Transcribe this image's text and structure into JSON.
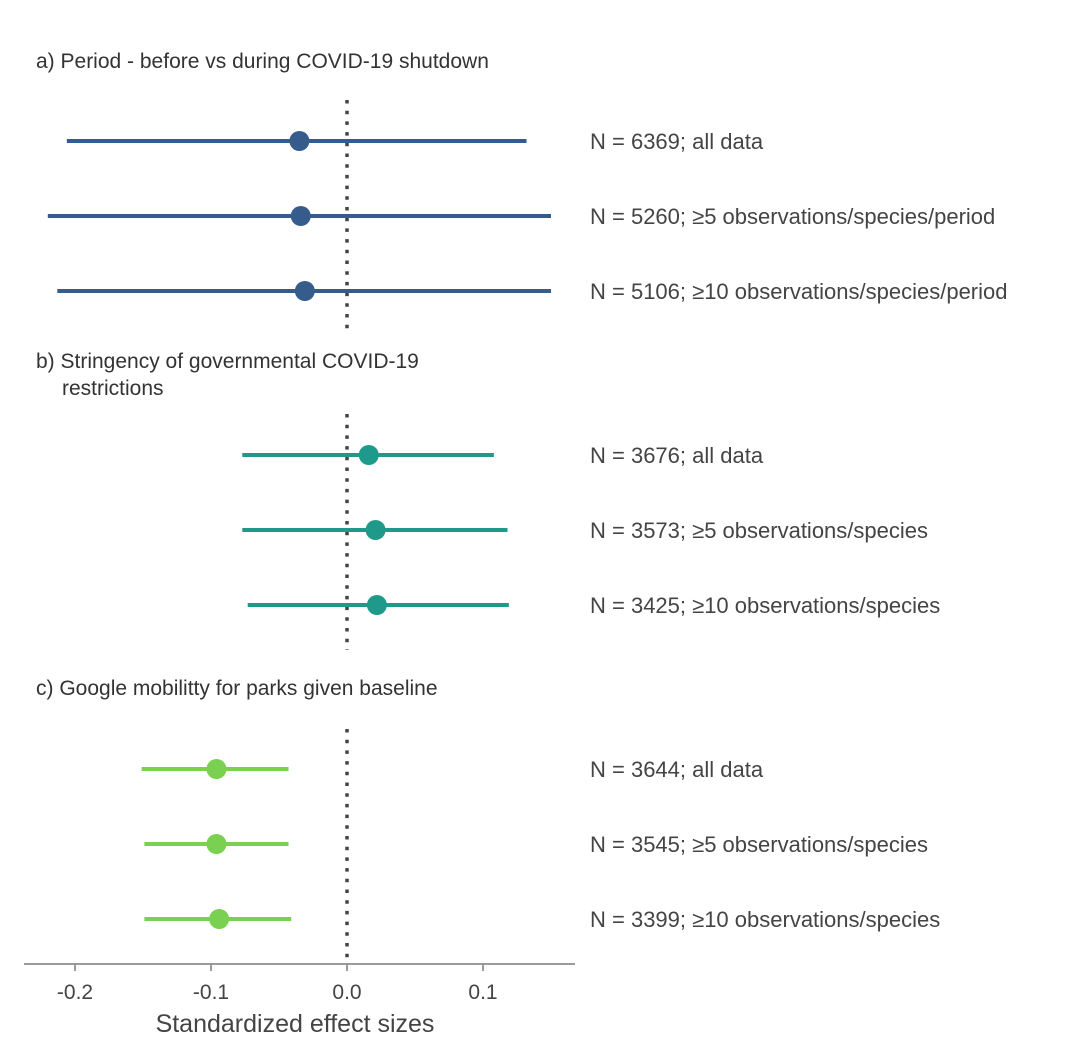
{
  "chart_data": {
    "type": "forest",
    "xlabel": "Standardized effect sizes",
    "xlim": [
      -0.24,
      0.17
    ],
    "xticks": [
      -0.2,
      -0.1,
      0.0,
      0.1
    ],
    "xtick_labels": [
      "-0.2",
      "-0.1",
      "0.0",
      "0.1"
    ],
    "reference_line": 0.0,
    "panels": [
      {
        "title": "a) Period - before vs during COVID-19 shutdown",
        "color": "#365C8D",
        "rows": [
          {
            "label": "N = 6369; all data",
            "estimate": -0.035,
            "lower": -0.206,
            "upper": 0.132
          },
          {
            "label": "N = 5260; ≥5 observations/species/period",
            "estimate": -0.034,
            "lower": -0.22,
            "upper": 0.15
          },
          {
            "label": "N = 5106; ≥10 observations/species/period",
            "estimate": -0.031,
            "lower": -0.213,
            "upper": 0.15
          }
        ]
      },
      {
        "title": "b) Stringency of governmental COVID-19",
        "title_line2": "restrictions",
        "color": "#1F9A8A",
        "rows": [
          {
            "label": "N = 3676; all data",
            "estimate": 0.016,
            "lower": -0.077,
            "upper": 0.108
          },
          {
            "label": "N = 3573; ≥5 observations/species",
            "estimate": 0.021,
            "lower": -0.077,
            "upper": 0.118
          },
          {
            "label": "N = 3425; ≥10 observations/species",
            "estimate": 0.022,
            "lower": -0.073,
            "upper": 0.119
          }
        ]
      },
      {
        "title": "c) Google mobilitty for parks given baseline",
        "color": "#7AD151",
        "rows": [
          {
            "label": "N = 3644; all data",
            "estimate": -0.096,
            "lower": -0.151,
            "upper": -0.043
          },
          {
            "label": "N = 3545; ≥5 observations/species",
            "estimate": -0.096,
            "lower": -0.149,
            "upper": -0.043
          },
          {
            "label": "N = 3399; ≥10 observations/species",
            "estimate": -0.094,
            "lower": -0.149,
            "upper": -0.041
          }
        ]
      }
    ]
  }
}
